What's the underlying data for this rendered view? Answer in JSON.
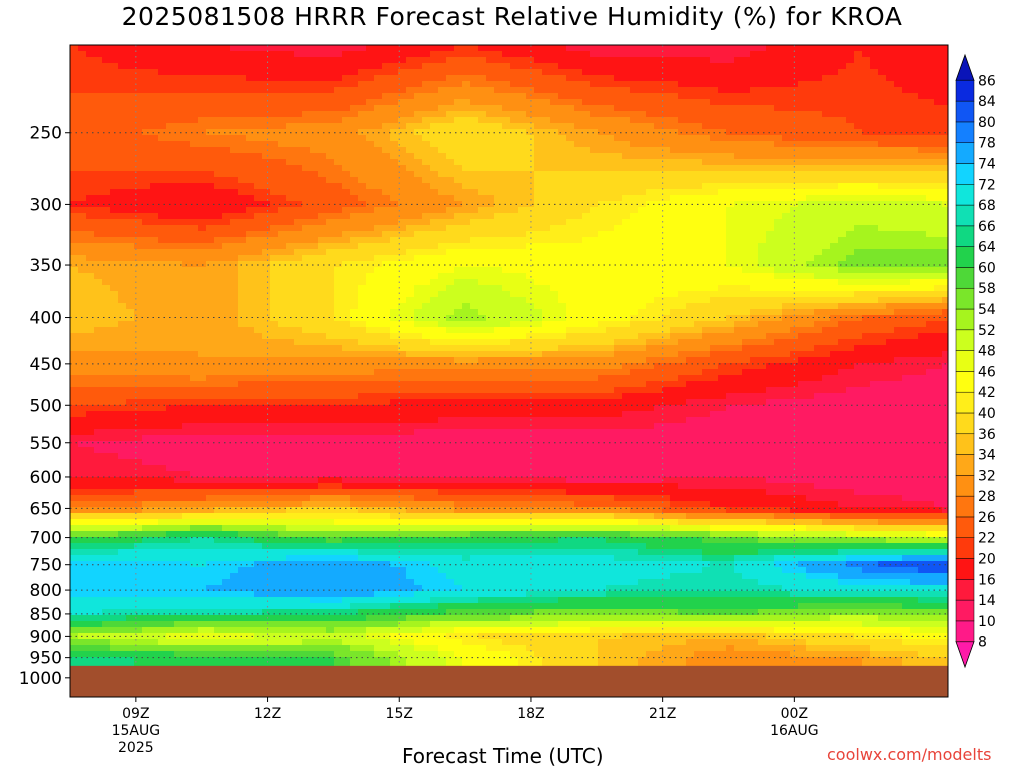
{
  "chart_data": {
    "type": "heatmap",
    "title": "2025081508 HRRR Forecast Relative Humidity (%) for KROA",
    "xlabel": "Forecast Time (UTC)",
    "y_axis": {
      "scale": "log",
      "inverted": true,
      "unit": "hPa",
      "ylim": [
        1050,
        200
      ],
      "ticks": [
        250,
        300,
        350,
        400,
        450,
        500,
        550,
        600,
        650,
        700,
        750,
        800,
        850,
        900,
        950,
        1000
      ],
      "surface_pressure": 970
    },
    "x_axis": {
      "unit": "hours_utc_from_15AUG_00Z",
      "xlim": [
        7.5,
        27.5
      ],
      "ticks": [
        {
          "x": 9,
          "label": "09Z",
          "sub1": "15AUG",
          "sub2": "2025"
        },
        {
          "x": 12,
          "label": "12Z",
          "sub1": "",
          "sub2": ""
        },
        {
          "x": 15,
          "label": "15Z",
          "sub1": "",
          "sub2": ""
        },
        {
          "x": 18,
          "label": "18Z",
          "sub1": "",
          "sub2": ""
        },
        {
          "x": 21,
          "label": "21Z",
          "sub1": "",
          "sub2": ""
        },
        {
          "x": 24,
          "label": "00Z",
          "sub1": "16AUG",
          "sub2": ""
        }
      ]
    },
    "grid": true,
    "colorbar": {
      "position": "right",
      "levels": [
        8,
        10,
        14,
        16,
        20,
        22,
        26,
        28,
        32,
        34,
        36,
        40,
        42,
        46,
        48,
        52,
        54,
        58,
        60,
        64,
        66,
        68,
        72,
        74,
        78,
        80,
        84,
        86
      ],
      "colors": [
        "#ff1aa8",
        "#ff1a88",
        "#ff1a62",
        "#ff1a3c",
        "#ff1414",
        "#ff3a0c",
        "#ff5a0c",
        "#ff760f",
        "#ff9012",
        "#ffa818",
        "#ffc21a",
        "#ffda1c",
        "#ffee1a",
        "#ffff10",
        "#e8ff14",
        "#ccff1e",
        "#a6f41e",
        "#7ae62a",
        "#4ed838",
        "#22d24c",
        "#10d882",
        "#10e0b4",
        "#10e6dc",
        "#12d4ff",
        "#14aaff",
        "#1480ff",
        "#1056f4",
        "#0a2ae0",
        "#0a14b8"
      ]
    },
    "levels_hpa": [
      200,
      250,
      300,
      350,
      400,
      450,
      500,
      550,
      600,
      650,
      700,
      750,
      800,
      850,
      900,
      950
    ],
    "times_hour": [
      7.5,
      10.5,
      13.5,
      16.5,
      19.5,
      22.5,
      25.5,
      27.5
    ],
    "values": [
      [
        20,
        16,
        14,
        20,
        14,
        14,
        20,
        16
      ],
      [
        24,
        28,
        30,
        40,
        32,
        26,
        22,
        22
      ],
      [
        20,
        16,
        24,
        32,
        40,
        46,
        50,
        48
      ],
      [
        34,
        32,
        40,
        46,
        44,
        46,
        56,
        56
      ],
      [
        36,
        32,
        40,
        54,
        44,
        36,
        26,
        22
      ],
      [
        30,
        32,
        30,
        30,
        30,
        22,
        16,
        14
      ],
      [
        22,
        20,
        20,
        18,
        18,
        14,
        12,
        12
      ],
      [
        14,
        12,
        12,
        12,
        12,
        12,
        10,
        10
      ],
      [
        16,
        14,
        14,
        14,
        12,
        14,
        12,
        12
      ],
      [
        28,
        32,
        36,
        30,
        28,
        20,
        16,
        14
      ],
      [
        60,
        66,
        58,
        62,
        64,
        58,
        52,
        50
      ],
      [
        74,
        72,
        78,
        70,
        70,
        68,
        80,
        84
      ],
      [
        74,
        74,
        78,
        72,
        68,
        66,
        70,
        70
      ],
      [
        68,
        66,
        64,
        58,
        56,
        58,
        54,
        56
      ],
      [
        52,
        46,
        50,
        40,
        36,
        34,
        40,
        44
      ],
      [
        66,
        62,
        60,
        46,
        36,
        30,
        32,
        36
      ]
    ],
    "credit": "coolwx.com/modelts"
  },
  "colors": {
    "ground": "#a24e2c",
    "grid": "#444444",
    "background": "#ffffff"
  }
}
